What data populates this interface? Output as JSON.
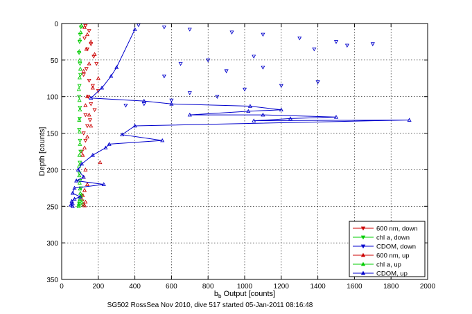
{
  "chart_data": {
    "type": "scatter",
    "xlabel_main": "b",
    "xlabel_sub": "b",
    "xlabel_rest": " Output [counts]",
    "ylabel": "Depth [counts]",
    "caption": "SG502 RossSea Nov 2010, dive 517 started 05-Jan-2011 08:16:48",
    "xlim": [
      0,
      2000
    ],
    "ylim": [
      0,
      350
    ],
    "y_reversed": true,
    "xticks": [
      0,
      200,
      400,
      600,
      800,
      1000,
      1200,
      1400,
      1600,
      1800,
      2000
    ],
    "yticks": [
      0,
      50,
      100,
      150,
      200,
      250,
      300,
      350
    ],
    "grid": true,
    "legend_position": "bottom-right",
    "series": [
      {
        "name": "600 nm, down",
        "color": "#cc0000",
        "marker": "triangle-down",
        "line": false,
        "x": [
          130,
          150,
          125,
          160,
          140,
          175,
          190,
          135,
          120,
          150,
          170,
          200,
          145,
          160,
          180,
          130,
          155,
          140,
          120,
          130,
          110
        ],
        "y": [
          3,
          10,
          20,
          28,
          35,
          45,
          55,
          62,
          70,
          78,
          85,
          92,
          100,
          110,
          118,
          125,
          132,
          140,
          150,
          160,
          175
        ]
      },
      {
        "name": "chl a, down",
        "color": "#00cc00",
        "marker": "triangle-down",
        "line": false,
        "x": [
          105,
          100,
          98,
          95,
          100,
          102,
          97,
          95,
          100,
          98,
          96,
          100,
          103,
          99,
          97,
          100,
          105,
          110,
          112,
          115
        ],
        "y": [
          5,
          15,
          25,
          40,
          55,
          70,
          85,
          100,
          115,
          130,
          145,
          160,
          175,
          190,
          205,
          215,
          225,
          235,
          243,
          248
        ]
      },
      {
        "name": "CDOM, down",
        "color": "#0000cc",
        "marker": "triangle-down",
        "line": false,
        "x": [
          420,
          560,
          700,
          930,
          1100,
          1300,
          1500,
          1560,
          1700,
          1380,
          1050,
          800,
          650,
          1100,
          900,
          560,
          1400,
          1200,
          1000,
          700,
          850,
          600,
          450,
          350
        ],
        "y": [
          2,
          5,
          8,
          12,
          15,
          20,
          25,
          30,
          28,
          35,
          45,
          50,
          55,
          60,
          65,
          72,
          80,
          85,
          90,
          95,
          100,
          105,
          110,
          112
        ]
      },
      {
        "name": "600 nm, up",
        "color": "#cc0000",
        "marker": "triangle-up",
        "line": false,
        "x": [
          125,
          140,
          160,
          135,
          180,
          150,
          120,
          200,
          170,
          140,
          130,
          150,
          160,
          140,
          125,
          115,
          210,
          130,
          120,
          140,
          125,
          115,
          110,
          130,
          120,
          125
        ],
        "y": [
          5,
          15,
          25,
          35,
          42,
          55,
          65,
          75,
          88,
          100,
          112,
          125,
          140,
          155,
          170,
          180,
          190,
          200,
          210,
          220,
          228,
          235,
          240,
          244,
          247,
          249
        ]
      },
      {
        "name": "chl a, up",
        "color": "#00cc00",
        "marker": "triangle-up",
        "line": false,
        "x": [
          108,
          104,
          100,
          96,
          99,
          102,
          98,
          94,
          97,
          100,
          96,
          98,
          100,
          97,
          95,
          96,
          98,
          100,
          102,
          104,
          100,
          96,
          95,
          94,
          93
        ],
        "y": [
          3,
          12,
          22,
          38,
          50,
          62,
          74,
          90,
          105,
          118,
          132,
          148,
          165,
          180,
          195,
          208,
          218,
          226,
          232,
          236,
          240,
          243,
          246,
          248,
          250
        ]
      },
      {
        "name": "CDOM, up",
        "color": "#0000cc",
        "marker": "triangle-up",
        "line": true,
        "x": [
          400,
          300,
          270,
          220,
          160,
          450,
          600,
          1030,
          1200,
          1020,
          700,
          1100,
          1500,
          1250,
          1050,
          1900,
          400,
          330,
          550,
          260,
          240,
          170,
          110,
          90,
          120,
          80,
          230,
          70,
          60,
          100,
          70,
          55,
          60,
          50,
          60
        ],
        "y": [
          8,
          60,
          72,
          88,
          102,
          106,
          110,
          113,
          118,
          120,
          125,
          125,
          128,
          130,
          133,
          132,
          140,
          152,
          160,
          165,
          170,
          180,
          192,
          200,
          210,
          215,
          220,
          225,
          232,
          237,
          240,
          243,
          246,
          248,
          250
        ]
      }
    ]
  }
}
